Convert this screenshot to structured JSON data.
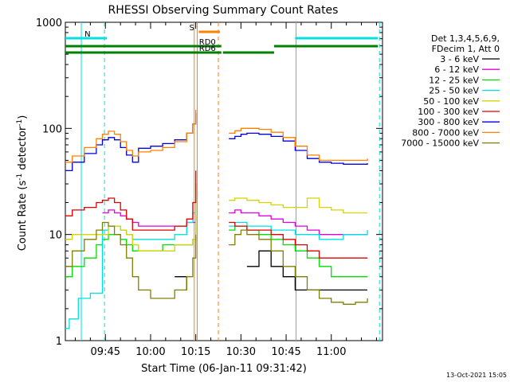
{
  "chart_data": {
    "type": "line",
    "title": "RHESSI Observing Summary Count Rates",
    "xlabel": "Start Time (06-Jan-11 09:31:42)",
    "ylabel": "Count Rate (s",
    "ylabel_sup": "-1",
    "ylabel_tail": " detector",
    "ylabel_sup2": "-1",
    "ylabel_close": ")",
    "y_scale": "log",
    "ylim": [
      1,
      1000
    ],
    "xlim_minutes": [
      571.7,
      677
    ],
    "x_tick_minutes": [
      585,
      600,
      615,
      630,
      645,
      660
    ],
    "x_tick_labels": [
      "09:45",
      "10:00",
      "10:15",
      "10:30",
      "10:45",
      "11:00"
    ],
    "y_tick_values": [
      1,
      10,
      100,
      1000
    ],
    "y_tick_labels": [
      "1",
      "10",
      "100",
      "1000"
    ],
    "legend_header": [
      "Det 1,3,4,5,6,9,",
      "FDecim 1, Att 0"
    ],
    "legend_position": "right",
    "series": [
      {
        "name": "3 - 6 keV",
        "color": "#000000",
        "x": [
          571.7,
          580,
          584,
          588,
          592,
          596,
          600,
          604,
          608,
          612,
          615,
          616,
          624,
          628,
          632,
          636,
          640,
          644,
          648,
          652,
          656,
          660,
          664,
          668,
          672,
          676
        ],
        "values": [
          null,
          null,
          null,
          null,
          null,
          null,
          null,
          null,
          4,
          3,
          null,
          null,
          null,
          null,
          5,
          7,
          5,
          4,
          3,
          3,
          3,
          3,
          3,
          3,
          3,
          null
        ]
      },
      {
        "name": "6 - 12 keV",
        "color": "#e000e0",
        "x": [
          571.7,
          578,
          582,
          584,
          586,
          588,
          590,
          592,
          594,
          596,
          600,
          604,
          608,
          612,
          615,
          616,
          624,
          626,
          628,
          630,
          632,
          636,
          640,
          644,
          648,
          652,
          656,
          660,
          664,
          668,
          672,
          676
        ],
        "values": [
          null,
          null,
          null,
          16,
          17,
          16,
          15,
          14,
          13,
          12,
          12,
          12,
          12,
          13,
          30,
          null,
          null,
          16,
          17,
          16,
          16,
          15,
          14,
          13,
          12,
          11,
          10,
          10,
          10,
          10,
          10,
          null
        ]
      },
      {
        "name": "12 - 25 keV",
        "color": "#00e000",
        "x": [
          571.7,
          574,
          578,
          582,
          584,
          586,
          588,
          590,
          592,
          594,
          596,
          600,
          604,
          608,
          612,
          614,
          615,
          616,
          624,
          626,
          628,
          630,
          632,
          636,
          640,
          644,
          648,
          652,
          656,
          660,
          664,
          668,
          672,
          676
        ],
        "values": [
          4,
          5,
          6,
          8,
          9,
          10,
          10,
          9,
          8,
          7,
          7,
          7,
          8,
          8,
          8,
          9,
          16,
          null,
          null,
          11,
          12,
          12,
          11,
          10,
          9,
          8,
          7,
          6,
          5,
          4,
          4,
          4,
          4,
          null
        ]
      },
      {
        "name": "25 - 50 keV",
        "color": "#00e0e0",
        "x": [
          571.7,
          573,
          576,
          580,
          584,
          586,
          588,
          590,
          592,
          594,
          596,
          600,
          604,
          608,
          612,
          614,
          615,
          616,
          624,
          626,
          628,
          630,
          632,
          636,
          640,
          644,
          648,
          652,
          656,
          660,
          664,
          668,
          672,
          676
        ],
        "values": [
          1.3,
          1.6,
          2.5,
          2.8,
          11,
          12,
          12,
          11,
          10,
          9,
          9,
          9,
          9,
          10,
          13,
          16,
          25,
          null,
          null,
          12,
          13,
          13,
          12,
          12,
          11,
          11,
          10,
          10,
          9,
          9,
          10,
          10,
          11,
          null
        ]
      },
      {
        "name": "50 - 100 keV",
        "color": "#d4d400",
        "x": [
          571.7,
          574,
          578,
          582,
          586,
          588,
          590,
          592,
          594,
          596,
          600,
          604,
          608,
          612,
          614,
          615,
          616,
          624,
          626,
          628,
          630,
          632,
          636,
          640,
          644,
          648,
          652,
          656,
          660,
          664,
          668,
          672,
          676
        ],
        "values": [
          9,
          10,
          10,
          10,
          12,
          12,
          11,
          10,
          8,
          7,
          7,
          7,
          8,
          8,
          9,
          30,
          null,
          null,
          21,
          22,
          22,
          21,
          20,
          19,
          18,
          18,
          22,
          18,
          17,
          16,
          16,
          16,
          null
        ]
      },
      {
        "name": "100 - 300 keV",
        "color": "#e00000",
        "x": [
          571.7,
          574,
          578,
          582,
          584,
          586,
          588,
          590,
          592,
          594,
          596,
          600,
          604,
          608,
          612,
          614,
          615,
          616,
          624,
          626,
          628,
          630,
          632,
          636,
          640,
          644,
          648,
          652,
          656,
          660,
          664,
          668,
          672,
          676
        ],
        "values": [
          15,
          17,
          18,
          20,
          21,
          22,
          20,
          17,
          14,
          11,
          11,
          11,
          11,
          12,
          14,
          20,
          40,
          null,
          null,
          13,
          12,
          12,
          11,
          11,
          10,
          9,
          8,
          7,
          6,
          6,
          6,
          6,
          6,
          null
        ]
      },
      {
        "name": "300 - 800 keV",
        "color": "#0000e0",
        "x": [
          571.7,
          574,
          578,
          582,
          584,
          586,
          588,
          590,
          592,
          594,
          596,
          600,
          604,
          608,
          612,
          614,
          615,
          616,
          624,
          626,
          628,
          630,
          632,
          636,
          640,
          644,
          648,
          652,
          656,
          660,
          664,
          668,
          672,
          676
        ],
        "values": [
          40,
          48,
          58,
          70,
          78,
          82,
          78,
          66,
          56,
          48,
          65,
          68,
          72,
          78,
          90,
          110,
          140,
          null,
          null,
          80,
          84,
          88,
          90,
          88,
          84,
          76,
          62,
          52,
          48,
          47,
          46,
          46,
          47,
          null
        ]
      },
      {
        "name": "800 - 7000 keV",
        "color": "#ff8000",
        "x": [
          571.7,
          574,
          578,
          582,
          584,
          586,
          588,
          590,
          592,
          594,
          596,
          600,
          604,
          608,
          612,
          614,
          615,
          616,
          624,
          626,
          628,
          630,
          632,
          636,
          640,
          644,
          648,
          652,
          656,
          660,
          664,
          668,
          672,
          676
        ],
        "values": [
          48,
          55,
          66,
          80,
          88,
          94,
          88,
          75,
          62,
          55,
          60,
          62,
          66,
          75,
          90,
          110,
          150,
          null,
          null,
          90,
          95,
          100,
          100,
          98,
          92,
          82,
          68,
          56,
          50,
          50,
          50,
          50,
          52,
          null
        ]
      },
      {
        "name": "7000 - 15000 keV",
        "color": "#808000",
        "x": [
          571.7,
          574,
          578,
          582,
          584,
          586,
          588,
          590,
          592,
          594,
          596,
          600,
          604,
          608,
          612,
          614,
          615,
          616,
          624,
          626,
          628,
          630,
          632,
          636,
          640,
          644,
          648,
          652,
          656,
          660,
          664,
          668,
          672,
          676
        ],
        "values": [
          5,
          7,
          9,
          11,
          13,
          12,
          10,
          8,
          6,
          4,
          3,
          2.5,
          2.5,
          3,
          4,
          6,
          10,
          null,
          null,
          8,
          10,
          11,
          10,
          9,
          7,
          5,
          4,
          3,
          2.5,
          2.3,
          2.2,
          2.3,
          2.5,
          null
        ]
      }
    ],
    "annotations": [
      {
        "label": "N",
        "color": "#00e0e0",
        "x_start": 571.7,
        "x_end": 585.5,
        "level": 1
      },
      {
        "label": "RD0",
        "color": "#008000",
        "x_start": 571.7,
        "x_end": 623.5,
        "level": 2
      },
      {
        "label": "RD6",
        "color": "#008000",
        "x_start": 571.7,
        "x_end": 623.5,
        "level": 3
      },
      {
        "label": "S",
        "color": "#ff8000",
        "x_start": 616,
        "x_end": 623,
        "level": 0
      },
      {
        "label": "",
        "color": "#00e0e0",
        "x_start": 648,
        "x_end": 675.5,
        "level": 1
      },
      {
        "label": "",
        "color": "#008000",
        "x_start": 641,
        "x_end": 675.5,
        "level": 2
      },
      {
        "label": "",
        "color": "#008000",
        "x_start": 624,
        "x_end": 641,
        "level": 3
      }
    ],
    "vertical_markers": [
      {
        "x": 584.7,
        "color": "#00e0e0",
        "dashed": true
      },
      {
        "x": 676,
        "color": "#00e0e0",
        "dashed": true
      },
      {
        "x": 615.5,
        "color": "#ff8000",
        "dashed": false
      },
      {
        "x": 622.5,
        "color": "#ff8000",
        "dashed": true
      },
      {
        "x": 577,
        "color": "#00e0e0",
        "dashed": false
      },
      {
        "x": 648.3,
        "color": "#00e0e0",
        "dashed": false
      },
      {
        "x": 614.5,
        "color": "#ff8000",
        "dashed": false
      }
    ],
    "timestamp": "13-Oct-2021 15:05"
  }
}
